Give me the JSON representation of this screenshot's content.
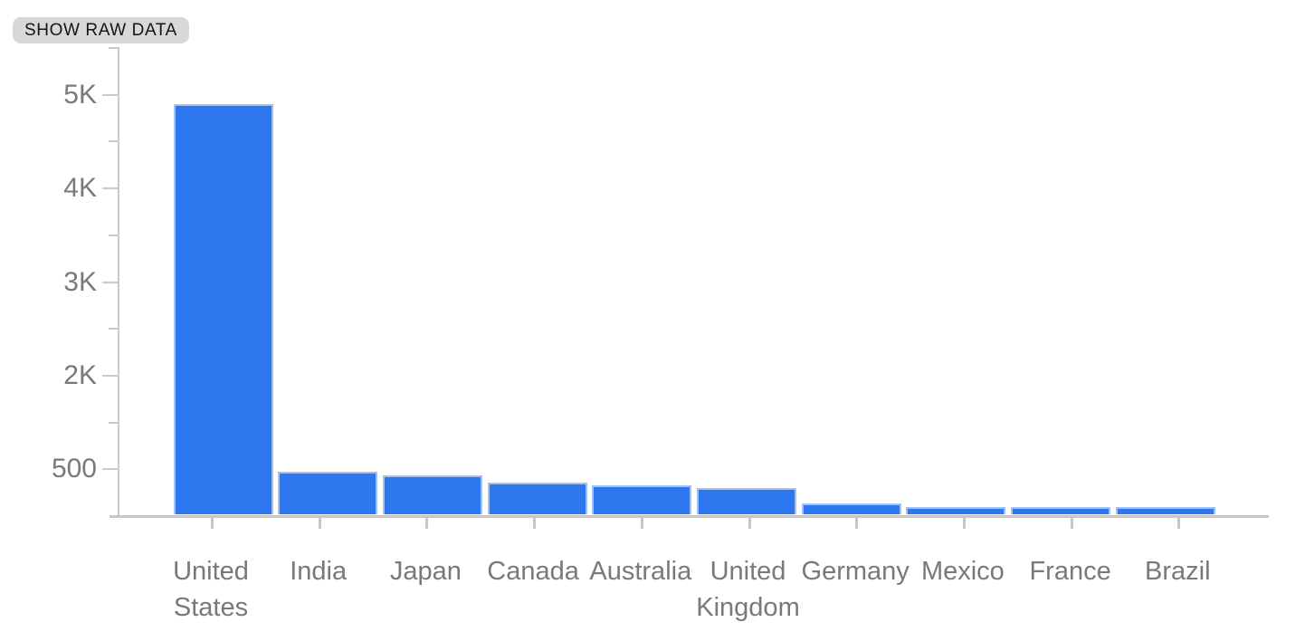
{
  "toolbar": {
    "show_raw_data_label": "SHOW RAW DATA"
  },
  "chart_data": {
    "type": "bar",
    "title": "",
    "xlabel": "",
    "ylabel": "",
    "categories": [
      "United States",
      "India",
      "Japan",
      "Canada",
      "Australia",
      "United Kingdom",
      "Germany",
      "Mexico",
      "France",
      "Brazil"
    ],
    "values": [
      4890,
      465,
      430,
      345,
      320,
      290,
      125,
      85,
      83,
      81
    ],
    "y_axis_tick_labels": [
      "5K",
      "4K",
      "3K",
      "2K",
      "500"
    ],
    "y_axis_tick_values": [
      5000,
      4000,
      3000,
      2000,
      500
    ],
    "ylim": [
      0,
      5500
    ],
    "grid": "off",
    "legend": "none",
    "bar_color": "#2d78ee",
    "bar_stroke_color": "rgba(255,255,255,0.55)",
    "axis_color": "#cbcbcb",
    "tick_label_color": "#77797d",
    "button_bg_color": "#d8d8d8"
  }
}
